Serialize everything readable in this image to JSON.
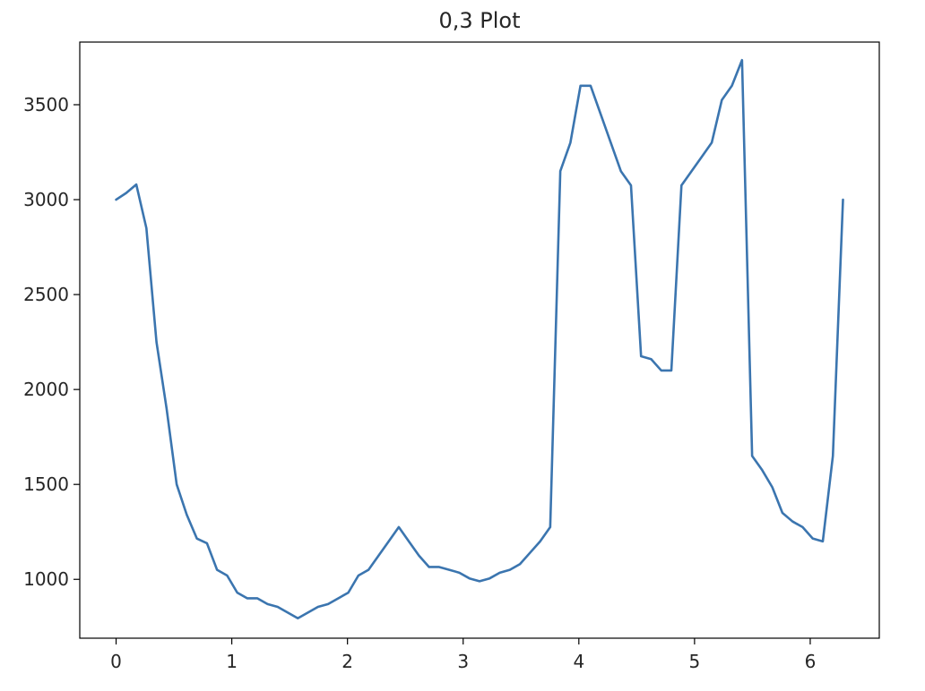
{
  "chart_data": {
    "type": "line",
    "title": "0,3 Plot",
    "xlabel": "",
    "ylabel": "",
    "xlim": [
      -0.314,
      6.597
    ],
    "ylim": [
      690,
      3830
    ],
    "xticks": [
      0,
      1,
      2,
      3,
      4,
      5,
      6
    ],
    "xtick_labels": [
      "0",
      "1",
      "2",
      "3",
      "4",
      "5",
      "6"
    ],
    "yticks": [
      1000,
      1500,
      2000,
      2500,
      3000,
      3500
    ],
    "ytick_labels": [
      "1000",
      "1500",
      "2000",
      "2500",
      "3000",
      "3500"
    ],
    "grid": false,
    "colors": {
      "line": "#3b75af",
      "axes": "#000000",
      "text": "#262626"
    },
    "series": [
      {
        "x": [
          0.0,
          0.0873,
          0.1745,
          0.2618,
          0.3491,
          0.4363,
          0.5236,
          0.6109,
          0.6981,
          0.7854,
          0.8727,
          0.9599,
          1.0472,
          1.1345,
          1.2217,
          1.309,
          1.3963,
          1.4835,
          1.5708,
          1.6581,
          1.7453,
          1.8326,
          1.9199,
          2.0071,
          2.0944,
          2.1817,
          2.2689,
          2.3562,
          2.4435,
          2.5307,
          2.618,
          2.7053,
          2.7925,
          2.8798,
          2.9671,
          3.0543,
          3.1416,
          3.2289,
          3.3161,
          3.4034,
          3.4907,
          3.5779,
          3.6652,
          3.7525,
          3.8397,
          3.927,
          4.0143,
          4.1015,
          4.1888,
          4.2761,
          4.3633,
          4.4506,
          4.5379,
          4.6251,
          4.7124,
          4.7997,
          4.8869,
          4.9742,
          5.0615,
          5.1487,
          5.236,
          5.3233,
          5.4105,
          5.4978,
          5.5851,
          5.6723,
          5.7596,
          5.8469,
          5.9341,
          6.0214,
          6.1087,
          6.1959,
          6.2832
        ],
        "values": [
          3000,
          3035,
          3080,
          2850,
          2250,
          1900,
          1500,
          1340,
          1215,
          1190,
          1050,
          1020,
          930,
          900,
          900,
          870,
          855,
          825,
          795,
          825,
          855,
          870,
          900,
          930,
          1020,
          1050,
          1125,
          1200,
          1275,
          1200,
          1125,
          1065,
          1065,
          1050,
          1035,
          1005,
          990,
          1005,
          1035,
          1050,
          1080,
          1140,
          1200,
          1275,
          3150,
          3300,
          3600,
          3600,
          3450,
          3300,
          3150,
          3075,
          2175,
          2160,
          2100,
          2100,
          3075,
          3150,
          3225,
          3300,
          3525,
          3600,
          3735,
          1650,
          1575,
          1485,
          1350,
          1305,
          1275,
          1215,
          1200,
          1650,
          3000
        ]
      }
    ]
  }
}
